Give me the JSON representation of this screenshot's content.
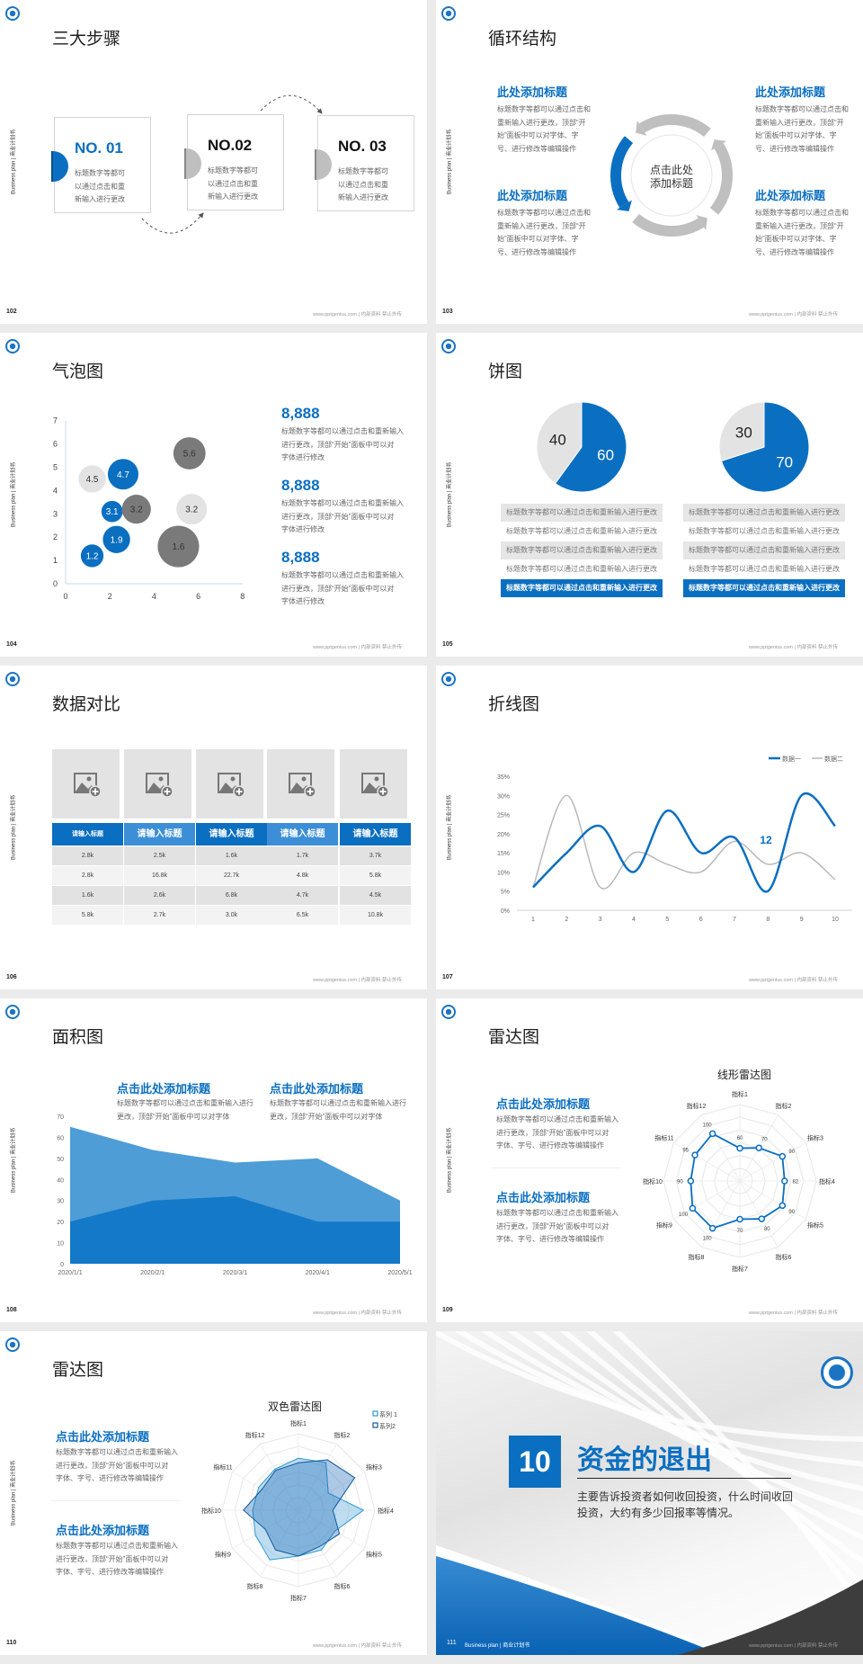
{
  "common": {
    "sidebar": "Business plan | 商业计划书",
    "footer": "www.pptgenius.com | 内部资料 禁止外传"
  },
  "colors": {
    "primary": "#0b6fc1",
    "primary_light": "#4a9ad6",
    "gray": "#bfbfbf",
    "dark_gray": "#7a7a7a",
    "light_gray": "#e3e3e3",
    "dark": "#404040"
  },
  "slides": [
    {
      "page": "102",
      "title": "三大步骤",
      "steps": [
        {
          "label": "NO. 01",
          "active": true,
          "lines": [
            "标题数字等都可",
            "以通过点击和重",
            "新输入进行更改"
          ]
        },
        {
          "label": "NO.02",
          "active": false,
          "lines": [
            "标题数字等都可",
            "以通过点击和重",
            "新输入进行更改"
          ]
        },
        {
          "label": "NO. 03",
          "active": false,
          "lines": [
            "标题数字等都可",
            "以通过点击和重",
            "新输入进行更改"
          ]
        }
      ]
    },
    {
      "page": "103",
      "title": "循环结构",
      "center": [
        "点击此处",
        "添加标题"
      ],
      "blocks": [
        {
          "heading": "此处添加标题",
          "lines": [
            "标题数字等都可以通过点击和",
            "重新输入进行更改，顶部“开",
            "始”面板中可以对字体、字",
            "号、进行修改等编辑操作"
          ]
        },
        {
          "heading": "此处添加标题",
          "lines": [
            "标题数字等都可以通过点击和",
            "重新输入进行更改，顶部“开",
            "始”面板中可以对字体、字",
            "号、进行修改等编辑操作"
          ]
        },
        {
          "heading": "此处添加标题",
          "lines": [
            "标题数字等都可以通过点击和",
            "重新输入进行更改，顶部“开",
            "始”面板中可以对字体、字",
            "号、进行修改等编辑操作"
          ]
        },
        {
          "heading": "此处添加标题",
          "lines": [
            "标题数字等都可以通过点击和",
            "重新输入进行更改，顶部“开",
            "始”面板中可以对字体、字",
            "号、进行修改等编辑操作"
          ]
        }
      ]
    },
    {
      "page": "104",
      "title": "气泡图",
      "stats": [
        {
          "value": "8,888",
          "lines": [
            "标题数字等都可以通过点击和重新输入",
            "进行更改，顶部“开始”面板中可以对",
            "字体进行修改"
          ]
        },
        {
          "value": "8,888",
          "lines": [
            "标题数字等都可以通过点击和重新输入",
            "进行更改，顶部“开始”面板中可以对",
            "字体进行修改"
          ]
        },
        {
          "value": "8,888",
          "lines": [
            "标题数字等都可以通过点击和重新输入",
            "进行更改，顶部“开始”面板中可以对",
            "字体进行修改"
          ]
        }
      ]
    },
    {
      "page": "105",
      "title": "饼图",
      "rows_left": [
        "标题数字等都可以通过点击和重新输入进行更改",
        "标题数字等都可以通过点击和重新输入进行更改",
        "标题数字等都可以通过点击和重新输入进行更改",
        "标题数字等都可以通过点击和重新输入进行更改",
        "标题数字等都可以通过点击和重新输入进行更改"
      ],
      "rows_right": [
        "标题数字等都可以通过点击和重新输入进行更改",
        "标题数字等都可以通过点击和重新输入进行更改",
        "标题数字等都可以通过点击和重新输入进行更改",
        "标题数字等都可以通过点击和重新输入进行更改",
        "标题数字等都可以通过点击和重新输入进行更改"
      ]
    },
    {
      "page": "106",
      "title": "数据对比",
      "headers": [
        "请输入标题",
        "请输入标题",
        "请输入标题",
        "请输入标题",
        "请输入标题"
      ],
      "rows": [
        [
          "2.8k",
          "2.5k",
          "1.6k",
          "1.7k",
          "3.7k"
        ],
        [
          "2.8k",
          "16.8k",
          "22.7k",
          "4.8k",
          "5.8k"
        ],
        [
          "1.6k",
          "2.6k",
          "6.8k",
          "4.7k",
          "4.5k"
        ],
        [
          "5.8k",
          "2.7k",
          "3.0k",
          "6.5k",
          "10.8k"
        ]
      ]
    },
    {
      "page": "107",
      "title": "折线图"
    },
    {
      "page": "108",
      "title": "面积图",
      "blocks": [
        {
          "heading": "点击此处添加标题",
          "lines": [
            "标题数字等都可以通过点击和重新输入进行",
            "更改，顶部“开始”面板中可以对字体"
          ]
        },
        {
          "heading": "点击此处添加标题",
          "lines": [
            "标题数字等都可以通过点击和重新输入进行",
            "更改，顶部“开始”面板中可以对字体"
          ]
        }
      ]
    },
    {
      "page": "109",
      "title": "雷达图",
      "blocks": [
        {
          "heading": "点击此处添加标题",
          "lines": [
            "标题数字等都可以通过点击和重新输入",
            "进行更改，顶部“开始”面板中可以对",
            "字体、字号、进行修改等编辑操作"
          ]
        },
        {
          "heading": "点击此处添加标题",
          "lines": [
            "标题数字等都可以通过点击和重新输入",
            "进行更改，顶部“开始”面板中可以对",
            "字体、字号、进行修改等编辑操作"
          ]
        }
      ]
    },
    {
      "page": "110",
      "title": "雷达图",
      "blocks": [
        {
          "heading": "点击此处添加标题",
          "lines": [
            "标题数字等都可以通过点击和重新输入",
            "进行更改，顶部“开始”面板中可以对",
            "字体、字号、进行修改等编辑操作"
          ]
        },
        {
          "heading": "点击此处添加标题",
          "lines": [
            "标题数字等都可以通过点击和重新输入",
            "进行更改，顶部“开始”面板中可以对",
            "字体、字号、进行修改等编辑操作"
          ]
        }
      ]
    },
    {
      "page": "111",
      "number": "10",
      "title": "资金的退出",
      "lines": [
        "主要告诉投资者如何收回投资，什么时间收回",
        "投资，大约有多少回报率等情况。"
      ],
      "footer_left": "Business plan | 商业计划书"
    }
  ],
  "chart_data": [
    {
      "type": "scatter",
      "bubble": true,
      "xlim": [
        0,
        8
      ],
      "ylim": [
        0,
        7
      ],
      "xticks": [
        "0",
        "2",
        "4",
        "6",
        "8"
      ],
      "yticks": [
        "0",
        "1",
        "2",
        "3",
        "4",
        "5",
        "6",
        "7"
      ],
      "points": [
        {
          "x": 1.2,
          "y": 1.2,
          "size": 1.6,
          "label": "1.2",
          "color": "blue"
        },
        {
          "x": 2.3,
          "y": 1.9,
          "size": 2.3,
          "label": "1.9",
          "color": "blue"
        },
        {
          "x": 2.1,
          "y": 3.1,
          "size": 1.4,
          "label": "3.1",
          "color": "blue"
        },
        {
          "x": 3.2,
          "y": 3.2,
          "size": 2.6,
          "label": "3.2",
          "color": "dark"
        },
        {
          "x": 1.2,
          "y": 4.5,
          "size": 2.3,
          "label": "4.5",
          "color": "light"
        },
        {
          "x": 2.6,
          "y": 4.7,
          "size": 2.9,
          "label": "4.7",
          "color": "blue"
        },
        {
          "x": 5.6,
          "y": 5.6,
          "size": 3.2,
          "label": "5.6",
          "color": "dark"
        },
        {
          "x": 5.7,
          "y": 3.2,
          "size": 2.9,
          "label": "3.2",
          "color": "light"
        },
        {
          "x": 5.1,
          "y": 1.6,
          "size": 5.3,
          "label": "1.6",
          "color": "dark"
        }
      ]
    },
    {
      "type": "pie",
      "slices": [
        {
          "value": 60,
          "label": "60",
          "color": "blue"
        },
        {
          "value": 40,
          "label": "40",
          "color": "light"
        }
      ]
    },
    {
      "type": "pie",
      "slices": [
        {
          "value": 70,
          "label": "70",
          "color": "blue"
        },
        {
          "value": 30,
          "label": "30",
          "color": "light"
        }
      ]
    },
    {
      "type": "line",
      "categories": [
        "1",
        "2",
        "3",
        "4",
        "5",
        "6",
        "7",
        "8",
        "9",
        "10"
      ],
      "ylim": [
        0,
        35
      ],
      "yticks": [
        "0%",
        "5%",
        "10%",
        "15%",
        "20%",
        "25%",
        "30%",
        "35%"
      ],
      "legend": "top-right",
      "annotation": "12",
      "series": [
        {
          "name": "数据一",
          "values": [
            6,
            15,
            22,
            10,
            26,
            15,
            19,
            5,
            30,
            22
          ]
        },
        {
          "name": "数据二",
          "values": [
            6,
            30,
            6,
            15,
            12,
            10,
            18,
            12,
            15,
            8
          ]
        }
      ]
    },
    {
      "type": "area",
      "categories": [
        "2020/1/1",
        "2020/2/1",
        "2020/3/1",
        "2020/4/1",
        "2020/5/1"
      ],
      "ylim": [
        0,
        70
      ],
      "yticks": [
        "0",
        "10",
        "20",
        "30",
        "40",
        "50",
        "60",
        "70"
      ],
      "series": [
        {
          "values": [
            65,
            54,
            48,
            50,
            30
          ]
        },
        {
          "values": [
            20,
            30,
            32,
            20,
            20
          ]
        }
      ]
    },
    {
      "type": "radar",
      "title": "线形雷达图",
      "rmax": 140,
      "axes": [
        "指标1",
        "指标2",
        "指标3",
        "指标4",
        "指标5",
        "指标6",
        "指标7",
        "指标8",
        "指标9",
        "指标10",
        "指标11",
        "指标12"
      ],
      "series": [
        {
          "values": [
            60,
            70,
            90,
            82,
            90,
            80,
            70,
            100,
            100,
            90,
            95,
            100
          ]
        }
      ]
    },
    {
      "type": "radar",
      "title": "双色雷达图",
      "rmax": 100,
      "legend": "top-right",
      "axes": [
        "指标1",
        "指标2",
        "指标3",
        "指标4",
        "指标5",
        "指标6",
        "指标7",
        "指标8",
        "指标9",
        "指标10",
        "指标11",
        "指标12"
      ],
      "series": [
        {
          "name": "系列 1",
          "values": [
            68,
            72,
            45,
            85,
            55,
            60,
            60,
            75,
            65,
            60,
            60,
            62
          ]
        },
        {
          "name": "系列2",
          "values": [
            62,
            76,
            85,
            45,
            62,
            55,
            60,
            60,
            50,
            72,
            55,
            60
          ]
        }
      ]
    }
  ]
}
